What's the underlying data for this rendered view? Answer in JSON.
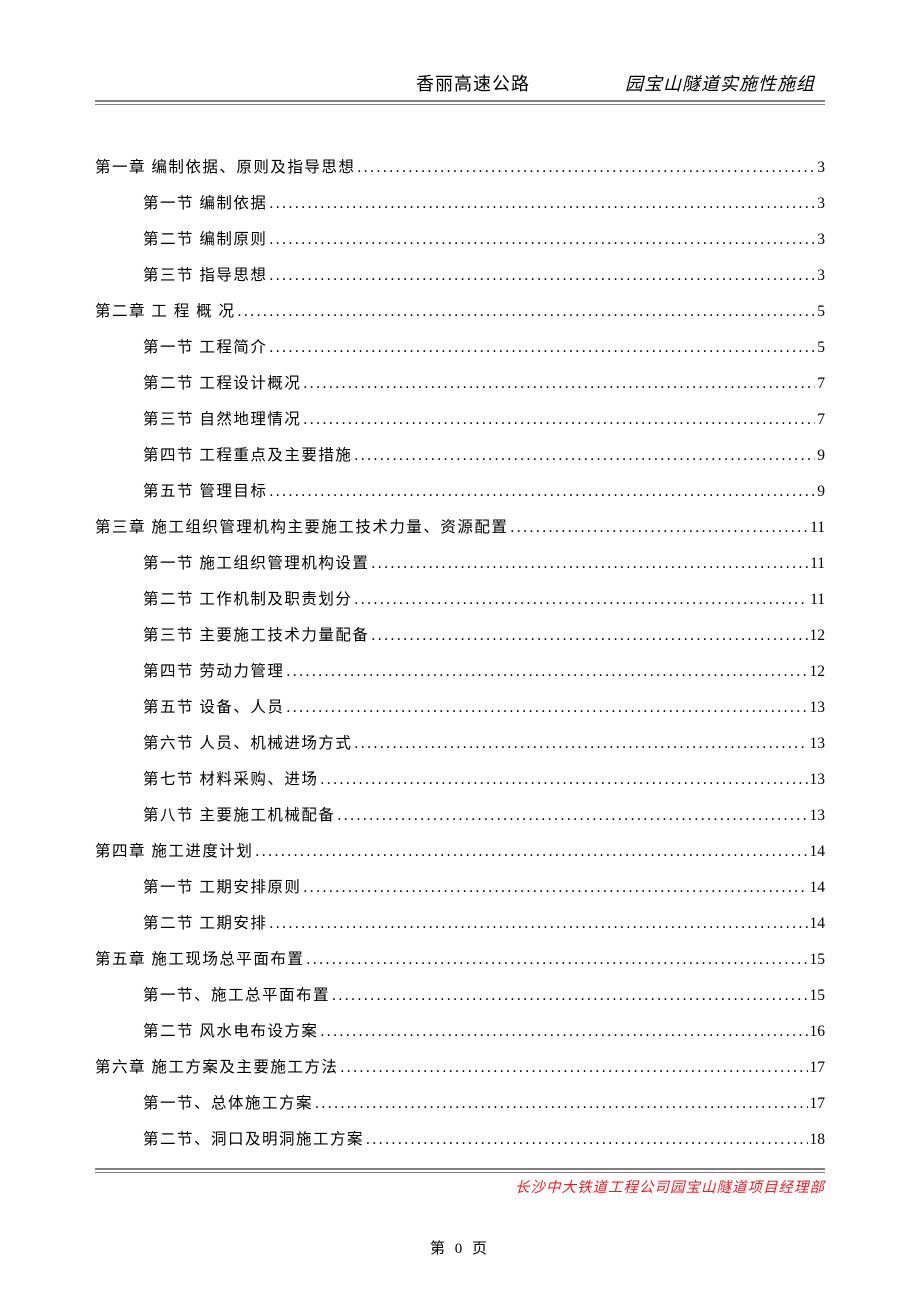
{
  "header": {
    "left": "香丽高速公路",
    "right": "园宝山隧道实施性施组"
  },
  "toc": [
    {
      "level": "chapter",
      "label": "第一章   编制依据、原则及指导思想",
      "page": "3"
    },
    {
      "level": "section",
      "label": "第一节   编制依据",
      "page": "3"
    },
    {
      "level": "section",
      "label": "第二节   编制原则",
      "page": "3"
    },
    {
      "level": "section",
      "label": "第三节   指导思想",
      "page": "3"
    },
    {
      "level": "chapter",
      "label": "第二章   工 程 概 况",
      "page": "5"
    },
    {
      "level": "section",
      "label": "第一节  工程简介",
      "page": "5"
    },
    {
      "level": "section",
      "label": "第二节  工程设计概况",
      "page": "7"
    },
    {
      "level": "section",
      "label": "第三节  自然地理情况",
      "page": "7"
    },
    {
      "level": "section",
      "label": "第四节  工程重点及主要措施",
      "page": "9"
    },
    {
      "level": "section",
      "label": "第五节  管理目标",
      "page": "9"
    },
    {
      "level": "chapter",
      "label": "第三章   施工组织管理机构主要施工技术力量、资源配置",
      "page": "11"
    },
    {
      "level": "section",
      "label": "第一节  施工组织管理机构设置",
      "page": "11"
    },
    {
      "level": "section",
      "label": "第二节  工作机制及职责划分",
      "page": "11"
    },
    {
      "level": "section",
      "label": "第三节  主要施工技术力量配备",
      "page": "12"
    },
    {
      "level": "section",
      "label": "第四节  劳动力管理",
      "page": "12"
    },
    {
      "level": "section",
      "label": "第五节  设备、人员",
      "page": "13"
    },
    {
      "level": "section",
      "label": "第六节  人员、机械进场方式",
      "page": "13"
    },
    {
      "level": "section",
      "label": "第七节  材料采购、进场",
      "page": "13"
    },
    {
      "level": "section",
      "label": "第八节  主要施工机械配备",
      "page": "13"
    },
    {
      "level": "chapter",
      "label": "第四章  施工进度计划",
      "page": "14"
    },
    {
      "level": "section",
      "label": "第一节  工期安排原则",
      "page": "14"
    },
    {
      "level": "section",
      "label": "第二节  工期安排",
      "page": "14"
    },
    {
      "level": "chapter",
      "label": "第五章  施工现场总平面布置",
      "page": "15"
    },
    {
      "level": "section",
      "label": "第一节、施工总平面布置",
      "page": "15"
    },
    {
      "level": "section",
      "label": "第二节  风水电布设方案",
      "page": "16"
    },
    {
      "level": "chapter",
      "label": "第六章   施工方案及主要施工方法",
      "page": "17"
    },
    {
      "level": "section",
      "label": "第一节、总体施工方案",
      "page": "17"
    },
    {
      "level": "section",
      "label": "第二节、洞口及明洞施工方案",
      "page": "18"
    }
  ],
  "footer": {
    "org": "长沙中大铁道工程公司园宝山隧道项目经理部",
    "page_label": "第  0  页"
  },
  "colors": {
    "text": "#000000",
    "rule": "#808080",
    "footer_org": "#ed1c24",
    "background": "#ffffff"
  },
  "typography": {
    "body_fontsize_pt": 12,
    "header_fontsize_pt": 13,
    "footer_fontsize_pt": 11,
    "body_font": "SimSun",
    "italic_font": "KaiTi"
  }
}
